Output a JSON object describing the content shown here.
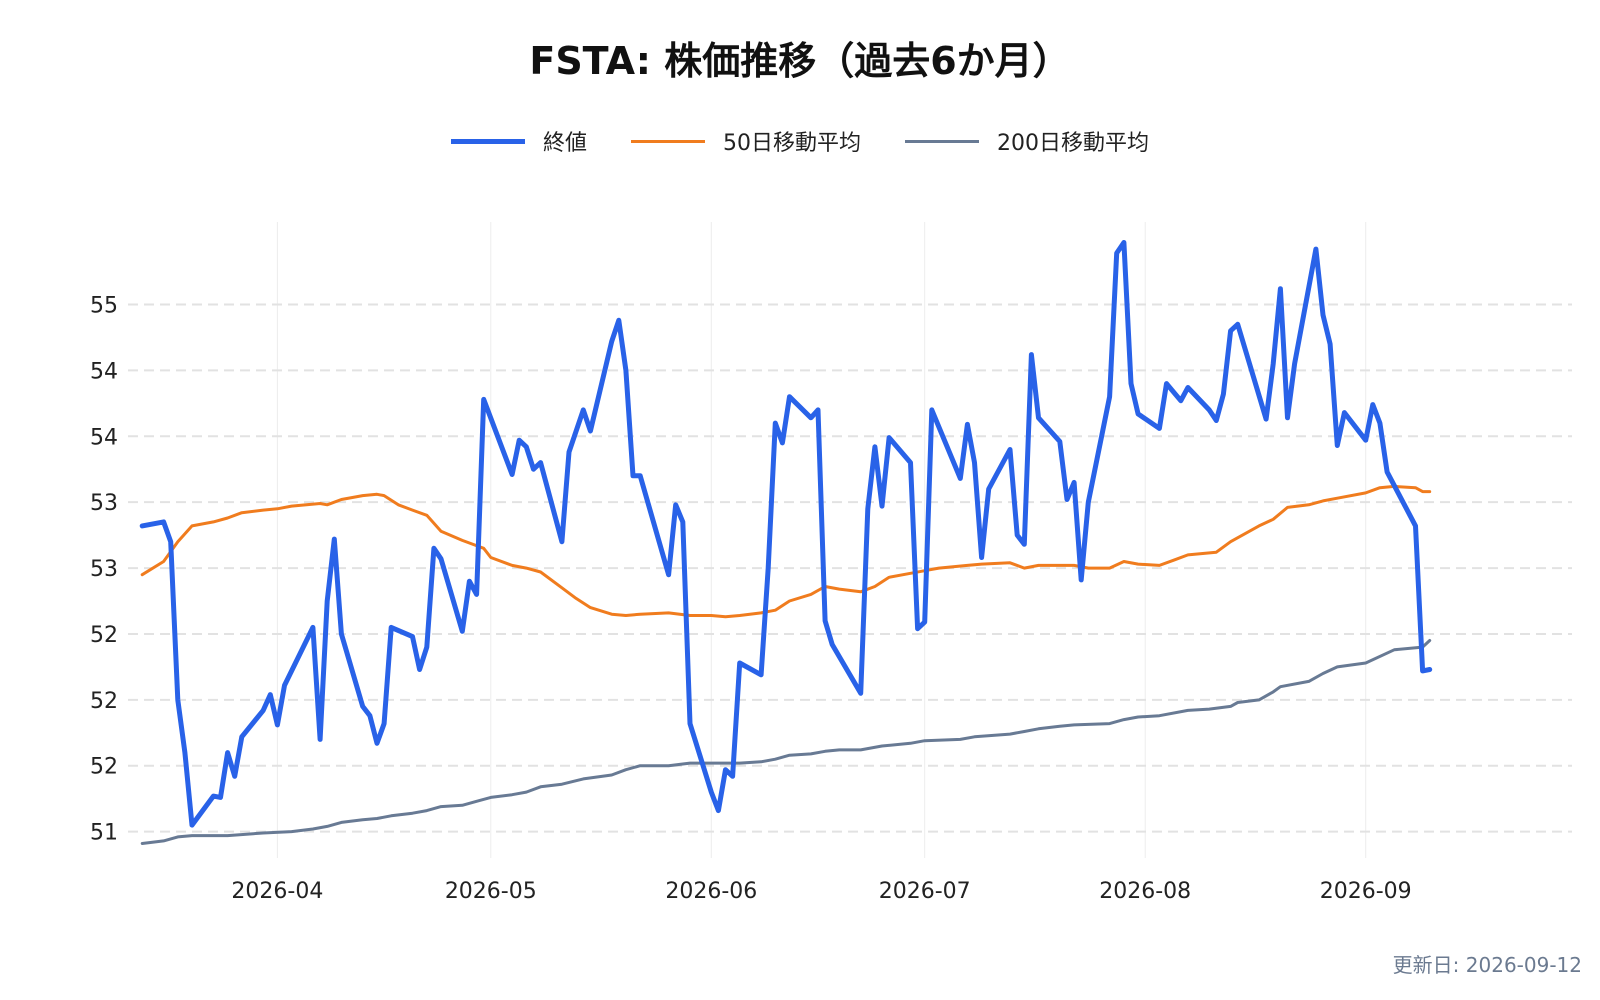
{
  "title": "FSTA: 株価推移（過去6か月）",
  "updated_label": "更新日: 2026-09-12",
  "chart_data": {
    "type": "line",
    "title": "FSTA: 株価推移（過去6か月）",
    "xlabel": "",
    "ylabel": "",
    "x_axis_type": "date",
    "xlim": [
      "2026-03-11",
      "2026-09-30"
    ],
    "ylim": [
      50.8,
      55.55
    ],
    "y_tick_values": [
      51,
      51.5,
      52,
      52.5,
      53,
      53.5,
      54,
      54.5,
      55
    ],
    "y_tick_labels": [
      "51",
      "52",
      "52",
      "52",
      "53",
      "53",
      "54",
      "54",
      "55"
    ],
    "x_tick_values": [
      "2026-04-01",
      "2026-05-01",
      "2026-06-01",
      "2026-07-01",
      "2026-08-01",
      "2026-09-01"
    ],
    "x_tick_labels": [
      "2026-04",
      "2026-05",
      "2026-06",
      "2026-07",
      "2026-08",
      "2026-09"
    ],
    "grid": true,
    "legend_position": "top-center",
    "series": [
      {
        "name": "終値",
        "color": "#2962e8",
        "points": [
          [
            "2026-03-13",
            53.32
          ],
          [
            "2026-03-16",
            53.35
          ],
          [
            "2026-03-17",
            53.2
          ],
          [
            "2026-03-18",
            52.0
          ],
          [
            "2026-03-19",
            51.6
          ],
          [
            "2026-03-20",
            51.05
          ],
          [
            "2026-03-23",
            51.27
          ],
          [
            "2026-03-24",
            51.26
          ],
          [
            "2026-03-25",
            51.6
          ],
          [
            "2026-03-26",
            51.42
          ],
          [
            "2026-03-27",
            51.72
          ],
          [
            "2026-03-30",
            51.92
          ],
          [
            "2026-03-31",
            52.04
          ],
          [
            "2026-04-01",
            51.81
          ],
          [
            "2026-04-02",
            52.11
          ],
          [
            "2026-04-06",
            52.55
          ],
          [
            "2026-04-07",
            51.7
          ],
          [
            "2026-04-08",
            52.75
          ],
          [
            "2026-04-09",
            53.22
          ],
          [
            "2026-04-10",
            52.5
          ],
          [
            "2026-04-13",
            51.95
          ],
          [
            "2026-04-14",
            51.88
          ],
          [
            "2026-04-15",
            51.67
          ],
          [
            "2026-04-16",
            51.82
          ],
          [
            "2026-04-17",
            52.55
          ],
          [
            "2026-04-20",
            52.48
          ],
          [
            "2026-04-21",
            52.23
          ],
          [
            "2026-04-22",
            52.4
          ],
          [
            "2026-04-23",
            53.15
          ],
          [
            "2026-04-24",
            53.07
          ],
          [
            "2026-04-27",
            52.52
          ],
          [
            "2026-04-28",
            52.9
          ],
          [
            "2026-04-29",
            52.8
          ],
          [
            "2026-04-30",
            54.28
          ],
          [
            "2026-05-04",
            53.71
          ],
          [
            "2026-05-05",
            53.97
          ],
          [
            "2026-05-06",
            53.92
          ],
          [
            "2026-05-07",
            53.75
          ],
          [
            "2026-05-08",
            53.8
          ],
          [
            "2026-05-11",
            53.2
          ],
          [
            "2026-05-12",
            53.88
          ],
          [
            "2026-05-14",
            54.2
          ],
          [
            "2026-05-15",
            54.04
          ],
          [
            "2026-05-18",
            54.72
          ],
          [
            "2026-05-19",
            54.88
          ],
          [
            "2026-05-20",
            54.5
          ],
          [
            "2026-05-21",
            53.7
          ],
          [
            "2026-05-22",
            53.7
          ],
          [
            "2026-05-26",
            52.95
          ],
          [
            "2026-05-27",
            53.48
          ],
          [
            "2026-05-28",
            53.35
          ],
          [
            "2026-05-29",
            51.82
          ],
          [
            "2026-06-01",
            51.3
          ],
          [
            "2026-06-02",
            51.16
          ],
          [
            "2026-06-03",
            51.47
          ],
          [
            "2026-06-04",
            51.42
          ],
          [
            "2026-06-05",
            52.28
          ],
          [
            "2026-06-08",
            52.19
          ],
          [
            "2026-06-09",
            53.0
          ],
          [
            "2026-06-10",
            54.1
          ],
          [
            "2026-06-11",
            53.95
          ],
          [
            "2026-06-12",
            54.3
          ],
          [
            "2026-06-15",
            54.14
          ],
          [
            "2026-06-16",
            54.2
          ],
          [
            "2026-06-17",
            52.6
          ],
          [
            "2026-06-18",
            52.42
          ],
          [
            "2026-06-22",
            52.05
          ],
          [
            "2026-06-23",
            53.45
          ],
          [
            "2026-06-24",
            53.92
          ],
          [
            "2026-06-25",
            53.47
          ],
          [
            "2026-06-26",
            53.99
          ],
          [
            "2026-06-29",
            53.8
          ],
          [
            "2026-06-30",
            52.54
          ],
          [
            "2026-07-01",
            52.59
          ],
          [
            "2026-07-02",
            54.2
          ],
          [
            "2026-07-06",
            53.68
          ],
          [
            "2026-07-07",
            54.09
          ],
          [
            "2026-07-08",
            53.8
          ],
          [
            "2026-07-09",
            53.08
          ],
          [
            "2026-07-10",
            53.6
          ],
          [
            "2026-07-13",
            53.9
          ],
          [
            "2026-07-14",
            53.25
          ],
          [
            "2026-07-15",
            53.18
          ],
          [
            "2026-07-16",
            54.62
          ],
          [
            "2026-07-17",
            54.14
          ],
          [
            "2026-07-20",
            53.96
          ],
          [
            "2026-07-21",
            53.52
          ],
          [
            "2026-07-22",
            53.65
          ],
          [
            "2026-07-23",
            52.91
          ],
          [
            "2026-07-24",
            53.5
          ],
          [
            "2026-07-27",
            54.3
          ],
          [
            "2026-07-28",
            55.39
          ],
          [
            "2026-07-29",
            55.47
          ],
          [
            "2026-07-30",
            54.4
          ],
          [
            "2026-07-31",
            54.17
          ],
          [
            "2026-08-03",
            54.06
          ],
          [
            "2026-08-04",
            54.4
          ],
          [
            "2026-08-06",
            54.27
          ],
          [
            "2026-08-07",
            54.37
          ],
          [
            "2026-08-10",
            54.2
          ],
          [
            "2026-08-11",
            54.12
          ],
          [
            "2026-08-12",
            54.32
          ],
          [
            "2026-08-13",
            54.8
          ],
          [
            "2026-08-14",
            54.85
          ],
          [
            "2026-08-18",
            54.13
          ],
          [
            "2026-08-19",
            54.55
          ],
          [
            "2026-08-20",
            55.12
          ],
          [
            "2026-08-21",
            54.14
          ],
          [
            "2026-08-22",
            54.55
          ],
          [
            "2026-08-25",
            55.42
          ],
          [
            "2026-08-26",
            54.92
          ],
          [
            "2026-08-27",
            54.7
          ],
          [
            "2026-08-28",
            53.93
          ],
          [
            "2026-08-29",
            54.18
          ],
          [
            "2026-09-01",
            53.97
          ],
          [
            "2026-09-02",
            54.24
          ],
          [
            "2026-09-03",
            54.1
          ],
          [
            "2026-09-04",
            53.73
          ],
          [
            "2026-09-08",
            53.32
          ],
          [
            "2026-09-09",
            52.22
          ],
          [
            "2026-09-10",
            52.23
          ]
        ]
      },
      {
        "name": "50日移動平均",
        "color": "#f07c1e",
        "points": [
          [
            "2026-03-13",
            52.95
          ],
          [
            "2026-03-16",
            53.05
          ],
          [
            "2026-03-18",
            53.2
          ],
          [
            "2026-03-20",
            53.32
          ],
          [
            "2026-03-23",
            53.35
          ],
          [
            "2026-03-25",
            53.38
          ],
          [
            "2026-03-27",
            53.42
          ],
          [
            "2026-03-30",
            53.44
          ],
          [
            "2026-04-01",
            53.45
          ],
          [
            "2026-04-03",
            53.47
          ],
          [
            "2026-04-07",
            53.49
          ],
          [
            "2026-04-08",
            53.48
          ],
          [
            "2026-04-10",
            53.52
          ],
          [
            "2026-04-13",
            53.55
          ],
          [
            "2026-04-15",
            53.56
          ],
          [
            "2026-04-16",
            53.55
          ],
          [
            "2026-04-18",
            53.48
          ],
          [
            "2026-04-20",
            53.44
          ],
          [
            "2026-04-22",
            53.4
          ],
          [
            "2026-04-24",
            53.28
          ],
          [
            "2026-04-27",
            53.21
          ],
          [
            "2026-04-28",
            53.19
          ],
          [
            "2026-04-30",
            53.15
          ],
          [
            "2026-05-01",
            53.08
          ],
          [
            "2026-05-04",
            53.02
          ],
          [
            "2026-05-06",
            53.0
          ],
          [
            "2026-05-08",
            52.97
          ],
          [
            "2026-05-11",
            52.85
          ],
          [
            "2026-05-13",
            52.77
          ],
          [
            "2026-05-15",
            52.7
          ],
          [
            "2026-05-18",
            52.65
          ],
          [
            "2026-05-20",
            52.64
          ],
          [
            "2026-05-22",
            52.65
          ],
          [
            "2026-05-26",
            52.66
          ],
          [
            "2026-05-29",
            52.64
          ],
          [
            "2026-06-01",
            52.64
          ],
          [
            "2026-06-03",
            52.63
          ],
          [
            "2026-06-05",
            52.64
          ],
          [
            "2026-06-08",
            52.66
          ],
          [
            "2026-06-10",
            52.68
          ],
          [
            "2026-06-12",
            52.75
          ],
          [
            "2026-06-15",
            52.8
          ],
          [
            "2026-06-17",
            52.86
          ],
          [
            "2026-06-19",
            52.84
          ],
          [
            "2026-06-22",
            52.82
          ],
          [
            "2026-06-24",
            52.86
          ],
          [
            "2026-06-26",
            52.93
          ],
          [
            "2026-06-29",
            52.96
          ],
          [
            "2026-07-01",
            52.98
          ],
          [
            "2026-07-03",
            53.0
          ],
          [
            "2026-07-07",
            53.02
          ],
          [
            "2026-07-09",
            53.03
          ],
          [
            "2026-07-13",
            53.04
          ],
          [
            "2026-07-15",
            53.0
          ],
          [
            "2026-07-17",
            53.02
          ],
          [
            "2026-07-20",
            53.02
          ],
          [
            "2026-07-22",
            53.02
          ],
          [
            "2026-07-24",
            53.0
          ],
          [
            "2026-07-27",
            53.0
          ],
          [
            "2026-07-29",
            53.05
          ],
          [
            "2026-07-31",
            53.03
          ],
          [
            "2026-08-03",
            53.02
          ],
          [
            "2026-08-05",
            53.06
          ],
          [
            "2026-08-07",
            53.1
          ],
          [
            "2026-08-11",
            53.12
          ],
          [
            "2026-08-13",
            53.2
          ],
          [
            "2026-08-17",
            53.32
          ],
          [
            "2026-08-19",
            53.37
          ],
          [
            "2026-08-21",
            53.46
          ],
          [
            "2026-08-24",
            53.48
          ],
          [
            "2026-08-26",
            53.51
          ],
          [
            "2026-08-28",
            53.53
          ],
          [
            "2026-09-01",
            53.57
          ],
          [
            "2026-09-03",
            53.61
          ],
          [
            "2026-09-05",
            53.62
          ],
          [
            "2026-09-08",
            53.61
          ],
          [
            "2026-09-09",
            53.58
          ],
          [
            "2026-09-10",
            53.58
          ]
        ]
      },
      {
        "name": "200日移動平均",
        "color": "#687a94",
        "points": [
          [
            "2026-03-13",
            50.91
          ],
          [
            "2026-03-16",
            50.93
          ],
          [
            "2026-03-18",
            50.96
          ],
          [
            "2026-03-20",
            50.97
          ],
          [
            "2026-03-25",
            50.97
          ],
          [
            "2026-03-30",
            50.99
          ],
          [
            "2026-04-03",
            51.0
          ],
          [
            "2026-04-06",
            51.02
          ],
          [
            "2026-04-08",
            51.04
          ],
          [
            "2026-04-10",
            51.07
          ],
          [
            "2026-04-13",
            51.09
          ],
          [
            "2026-04-15",
            51.1
          ],
          [
            "2026-04-17",
            51.12
          ],
          [
            "2026-04-20",
            51.14
          ],
          [
            "2026-04-22",
            51.16
          ],
          [
            "2026-04-24",
            51.19
          ],
          [
            "2026-04-27",
            51.2
          ],
          [
            "2026-04-29",
            51.23
          ],
          [
            "2026-05-01",
            51.26
          ],
          [
            "2026-05-04",
            51.28
          ],
          [
            "2026-05-06",
            51.3
          ],
          [
            "2026-05-08",
            51.34
          ],
          [
            "2026-05-11",
            51.36
          ],
          [
            "2026-05-14",
            51.4
          ],
          [
            "2026-05-18",
            51.43
          ],
          [
            "2026-05-20",
            51.47
          ],
          [
            "2026-05-22",
            51.5
          ],
          [
            "2026-05-26",
            51.5
          ],
          [
            "2026-05-29",
            51.52
          ],
          [
            "2026-06-01",
            51.52
          ],
          [
            "2026-06-05",
            51.52
          ],
          [
            "2026-06-08",
            51.53
          ],
          [
            "2026-06-10",
            51.55
          ],
          [
            "2026-06-12",
            51.58
          ],
          [
            "2026-06-15",
            51.59
          ],
          [
            "2026-06-17",
            51.61
          ],
          [
            "2026-06-19",
            51.62
          ],
          [
            "2026-06-22",
            51.62
          ],
          [
            "2026-06-25",
            51.65
          ],
          [
            "2026-06-29",
            51.67
          ],
          [
            "2026-07-01",
            51.69
          ],
          [
            "2026-07-06",
            51.7
          ],
          [
            "2026-07-08",
            51.72
          ],
          [
            "2026-07-13",
            51.74
          ],
          [
            "2026-07-15",
            51.76
          ],
          [
            "2026-07-17",
            51.78
          ],
          [
            "2026-07-20",
            51.8
          ],
          [
            "2026-07-22",
            51.81
          ],
          [
            "2026-07-27",
            51.82
          ],
          [
            "2026-07-29",
            51.85
          ],
          [
            "2026-07-31",
            51.87
          ],
          [
            "2026-08-03",
            51.88
          ],
          [
            "2026-08-07",
            51.92
          ],
          [
            "2026-08-10",
            51.93
          ],
          [
            "2026-08-13",
            51.95
          ],
          [
            "2026-08-14",
            51.98
          ],
          [
            "2026-08-17",
            52.0
          ],
          [
            "2026-08-19",
            52.06
          ],
          [
            "2026-08-20",
            52.1
          ],
          [
            "2026-08-24",
            52.14
          ],
          [
            "2026-08-26",
            52.2
          ],
          [
            "2026-08-28",
            52.25
          ],
          [
            "2026-09-01",
            52.28
          ],
          [
            "2026-09-05",
            52.38
          ],
          [
            "2026-09-09",
            52.4
          ],
          [
            "2026-09-10",
            52.45
          ]
        ]
      }
    ]
  }
}
